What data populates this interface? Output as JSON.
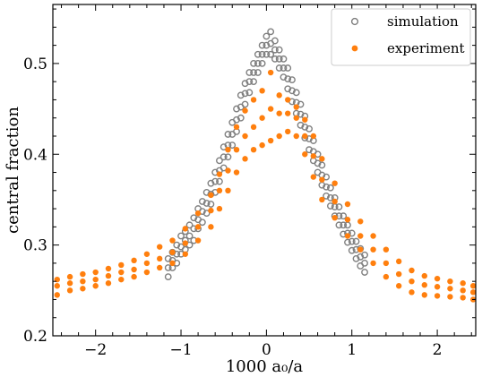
{
  "chart_data": {
    "type": "scatter",
    "title": "",
    "xlabel": "1000 a₀/a",
    "ylabel": "central fraction",
    "xlim": [
      -2.5,
      2.45
    ],
    "ylim": [
      0.2,
      0.565
    ],
    "x_ticks": [
      -2,
      -1,
      0,
      1,
      2
    ],
    "x_tick_labels": [
      "−2",
      "−1",
      "0",
      "1",
      "2"
    ],
    "y_ticks": [
      0.2,
      0.3,
      0.4,
      0.5
    ],
    "y_tick_labels": [
      "0.2",
      "0.3",
      "0.4",
      "0.5"
    ],
    "grid": false,
    "legend_position": "top-right",
    "series": [
      {
        "name": "simulation",
        "marker": "open-circle",
        "color": "#7f7f7f",
        "x": [
          -1.15,
          -1.15,
          -1.15,
          -1.1,
          -1.1,
          -1.1,
          -1.05,
          -1.05,
          -1.05,
          -1.0,
          -1.0,
          -1.0,
          -0.95,
          -0.95,
          -0.95,
          -0.9,
          -0.9,
          -0.9,
          -0.85,
          -0.85,
          -0.85,
          -0.8,
          -0.8,
          -0.8,
          -0.75,
          -0.75,
          -0.75,
          -0.7,
          -0.7,
          -0.7,
          -0.65,
          -0.65,
          -0.65,
          -0.6,
          -0.6,
          -0.6,
          -0.55,
          -0.55,
          -0.55,
          -0.5,
          -0.5,
          -0.5,
          -0.45,
          -0.45,
          -0.45,
          -0.4,
          -0.4,
          -0.4,
          -0.35,
          -0.35,
          -0.35,
          -0.3,
          -0.3,
          -0.3,
          -0.25,
          -0.25,
          -0.25,
          -0.2,
          -0.2,
          -0.2,
          -0.15,
          -0.15,
          -0.15,
          -0.1,
          -0.1,
          -0.1,
          -0.05,
          -0.05,
          -0.05,
          0.0,
          0.0,
          0.0,
          0.05,
          0.05,
          0.05,
          0.1,
          0.1,
          0.1,
          0.15,
          0.15,
          0.15,
          0.2,
          0.2,
          0.2,
          0.25,
          0.25,
          0.25,
          0.3,
          0.3,
          0.3,
          0.35,
          0.35,
          0.35,
          0.4,
          0.4,
          0.4,
          0.45,
          0.45,
          0.45,
          0.5,
          0.5,
          0.5,
          0.55,
          0.55,
          0.55,
          0.6,
          0.6,
          0.6,
          0.65,
          0.65,
          0.65,
          0.7,
          0.7,
          0.7,
          0.75,
          0.75,
          0.75,
          0.8,
          0.8,
          0.8,
          0.85,
          0.85,
          0.85,
          0.9,
          0.9,
          0.9,
          0.95,
          0.95,
          0.95,
          1.0,
          1.0,
          1.0,
          1.05,
          1.05,
          1.05,
          1.1,
          1.1,
          1.1,
          1.15,
          1.15,
          1.15
        ],
        "y": [
          0.265,
          0.275,
          0.285,
          0.275,
          0.283,
          0.292,
          0.28,
          0.29,
          0.3,
          0.29,
          0.298,
          0.31,
          0.295,
          0.305,
          0.315,
          0.3,
          0.31,
          0.322,
          0.305,
          0.318,
          0.33,
          0.318,
          0.328,
          0.34,
          0.325,
          0.337,
          0.348,
          0.335,
          0.346,
          0.358,
          0.345,
          0.356,
          0.368,
          0.358,
          0.37,
          0.38,
          0.37,
          0.382,
          0.393,
          0.385,
          0.397,
          0.408,
          0.397,
          0.41,
          0.422,
          0.41,
          0.422,
          0.435,
          0.425,
          0.438,
          0.45,
          0.44,
          0.452,
          0.465,
          0.455,
          0.467,
          0.478,
          0.468,
          0.48,
          0.49,
          0.48,
          0.49,
          0.5,
          0.49,
          0.5,
          0.51,
          0.5,
          0.51,
          0.52,
          0.51,
          0.52,
          0.53,
          0.51,
          0.522,
          0.535,
          0.505,
          0.515,
          0.525,
          0.495,
          0.505,
          0.515,
          0.485,
          0.495,
          0.505,
          0.472,
          0.483,
          0.495,
          0.458,
          0.47,
          0.482,
          0.445,
          0.457,
          0.468,
          0.432,
          0.444,
          0.455,
          0.418,
          0.43,
          0.442,
          0.405,
          0.417,
          0.428,
          0.393,
          0.403,
          0.415,
          0.38,
          0.39,
          0.4,
          0.366,
          0.377,
          0.388,
          0.354,
          0.364,
          0.375,
          0.343,
          0.352,
          0.363,
          0.332,
          0.342,
          0.352,
          0.322,
          0.332,
          0.342,
          0.312,
          0.322,
          0.332,
          0.303,
          0.313,
          0.322,
          0.294,
          0.304,
          0.313,
          0.285,
          0.295,
          0.304,
          0.277,
          0.287,
          0.296,
          0.27,
          0.28,
          0.289
        ]
      },
      {
        "name": "experiment",
        "marker": "filled-circle",
        "color": "#ff7f0e",
        "x": [
          -2.45,
          -2.45,
          -2.45,
          -2.3,
          -2.3,
          -2.3,
          -2.15,
          -2.15,
          -2.15,
          -2.0,
          -2.0,
          -2.0,
          -1.85,
          -1.85,
          -1.85,
          -1.7,
          -1.7,
          -1.7,
          -1.55,
          -1.55,
          -1.55,
          -1.4,
          -1.4,
          -1.4,
          -1.25,
          -1.25,
          -1.25,
          -1.1,
          -1.1,
          -1.1,
          -0.95,
          -0.95,
          -0.95,
          -0.8,
          -0.8,
          -0.8,
          -0.65,
          -0.65,
          -0.65,
          -0.55,
          -0.55,
          -0.55,
          -0.45,
          -0.45,
          -0.45,
          -0.35,
          -0.35,
          -0.35,
          -0.25,
          -0.25,
          -0.25,
          -0.15,
          -0.15,
          -0.15,
          -0.05,
          -0.05,
          -0.05,
          0.05,
          0.05,
          0.05,
          0.15,
          0.15,
          0.15,
          0.25,
          0.25,
          0.25,
          0.35,
          0.35,
          0.35,
          0.45,
          0.45,
          0.45,
          0.55,
          0.55,
          0.55,
          0.65,
          0.65,
          0.65,
          0.8,
          0.8,
          0.8,
          0.95,
          0.95,
          0.95,
          1.1,
          1.1,
          1.1,
          1.25,
          1.25,
          1.25,
          1.4,
          1.4,
          1.4,
          1.55,
          1.55,
          1.55,
          1.7,
          1.7,
          1.7,
          1.85,
          1.85,
          1.85,
          2.0,
          2.0,
          2.0,
          2.15,
          2.15,
          2.15,
          2.3,
          2.3,
          2.3,
          2.42,
          2.42,
          2.42
        ],
        "y": [
          0.245,
          0.255,
          0.262,
          0.25,
          0.258,
          0.265,
          0.252,
          0.26,
          0.268,
          0.255,
          0.262,
          0.27,
          0.258,
          0.266,
          0.274,
          0.262,
          0.27,
          0.278,
          0.265,
          0.273,
          0.283,
          0.27,
          0.28,
          0.29,
          0.275,
          0.285,
          0.298,
          0.28,
          0.292,
          0.305,
          0.29,
          0.302,
          0.318,
          0.305,
          0.32,
          0.335,
          0.32,
          0.338,
          0.355,
          0.34,
          0.36,
          0.378,
          0.36,
          0.382,
          0.405,
          0.38,
          0.405,
          0.43,
          0.395,
          0.42,
          0.448,
          0.405,
          0.43,
          0.46,
          0.41,
          0.44,
          0.47,
          0.415,
          0.45,
          0.49,
          0.42,
          0.445,
          0.465,
          0.425,
          0.445,
          0.46,
          0.42,
          0.44,
          0.452,
          0.4,
          0.42,
          0.438,
          0.375,
          0.398,
          0.42,
          0.35,
          0.372,
          0.395,
          0.33,
          0.348,
          0.368,
          0.31,
          0.328,
          0.345,
          0.295,
          0.31,
          0.326,
          0.28,
          0.295,
          0.31,
          0.265,
          0.28,
          0.295,
          0.255,
          0.268,
          0.282,
          0.248,
          0.26,
          0.272,
          0.245,
          0.256,
          0.266,
          0.244,
          0.254,
          0.263,
          0.243,
          0.252,
          0.26,
          0.242,
          0.25,
          0.258,
          0.24,
          0.248,
          0.255
        ]
      }
    ]
  }
}
